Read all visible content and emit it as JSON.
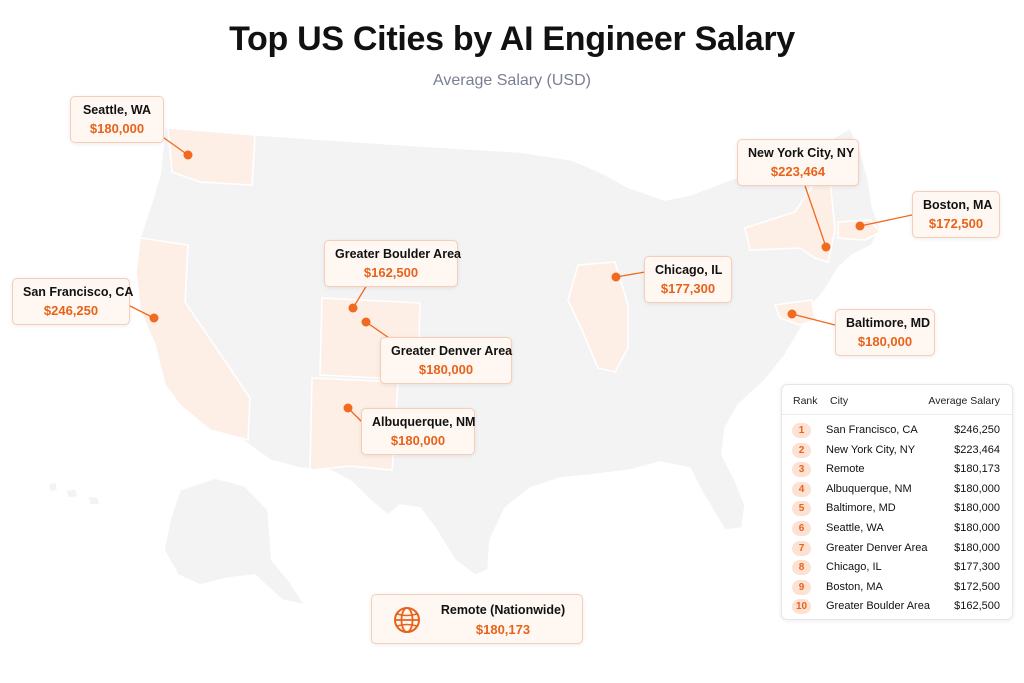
{
  "header": {
    "title": "Top US Cities by AI Engineer Salary",
    "subtitle": "Average Salary (USD)"
  },
  "colors": {
    "accent": "#f06a1f",
    "highlight_fill": "#fdeee6",
    "land_fill": "#f3f3f4",
    "callout_bg": "#fff7f2"
  },
  "callouts": {
    "seattle": {
      "city": "Seattle, WA",
      "salary": "$180,000"
    },
    "san_francisco": {
      "city": "San Francisco, CA",
      "salary": "$246,250"
    },
    "boulder": {
      "city": "Greater Boulder Area",
      "salary": "$162,500"
    },
    "denver": {
      "city": "Greater Denver Area",
      "salary": "$180,000"
    },
    "albuquerque": {
      "city": "Albuquerque, NM",
      "salary": "$180,000"
    },
    "chicago": {
      "city": "Chicago, IL",
      "salary": "$177,300"
    },
    "new_york": {
      "city": "New York City, NY",
      "salary": "$223,464"
    },
    "boston": {
      "city": "Boston, MA",
      "salary": "$172,500"
    },
    "baltimore": {
      "city": "Baltimore, MD",
      "salary": "$180,000"
    }
  },
  "remote": {
    "label": "Remote (Nationwide)",
    "salary": "$180,173",
    "icon": "globe-icon"
  },
  "table": {
    "headers": {
      "rank": "Rank",
      "city": "City",
      "salary": "Average Salary"
    },
    "rows": [
      {
        "rank": "1",
        "city": "San Francisco, CA",
        "salary": "$246,250"
      },
      {
        "rank": "2",
        "city": "New York City, NY",
        "salary": "$223,464"
      },
      {
        "rank": "3",
        "city": "Remote",
        "salary": "$180,173"
      },
      {
        "rank": "4",
        "city": "Albuquerque, NM",
        "salary": "$180,000"
      },
      {
        "rank": "5",
        "city": "Baltimore, MD",
        "salary": "$180,000"
      },
      {
        "rank": "6",
        "city": "Seattle, WA",
        "salary": "$180,000"
      },
      {
        "rank": "7",
        "city": "Greater Denver Area",
        "salary": "$180,000"
      },
      {
        "rank": "8",
        "city": "Chicago, IL",
        "salary": "$177,300"
      },
      {
        "rank": "9",
        "city": "Boston, MA",
        "salary": "$172,500"
      },
      {
        "rank": "10",
        "city": "Greater Boulder Area",
        "salary": "$162,500"
      }
    ]
  }
}
